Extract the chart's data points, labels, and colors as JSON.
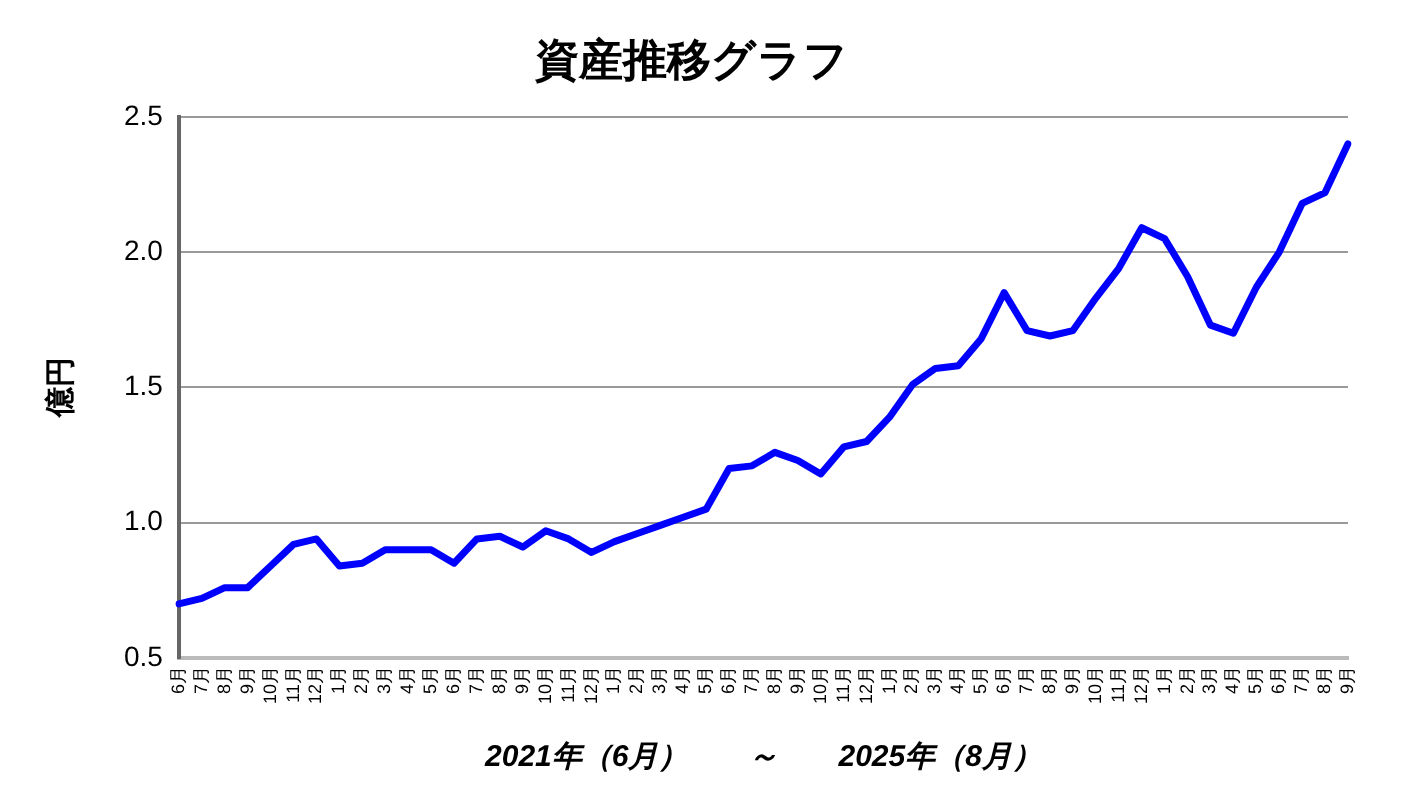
{
  "chart_data": {
    "type": "line",
    "title": "資産推移グラフ",
    "xlabel": "2021年（6月）　　～　　2025年（8月）",
    "ylabel": "億円",
    "categories": [
      "6月",
      "7月",
      "8月",
      "9月",
      "10月",
      "11月",
      "12月",
      "1月",
      "2月",
      "3月",
      "4月",
      "5月",
      "6月",
      "7月",
      "8月",
      "9月",
      "10月",
      "11月",
      "12月",
      "1月",
      "2月",
      "3月",
      "4月",
      "5月",
      "6月",
      "7月",
      "8月",
      "9月",
      "10月",
      "11月",
      "12月",
      "1月",
      "2月",
      "3月",
      "4月",
      "5月",
      "6月",
      "7月",
      "8月",
      "9月",
      "10月",
      "11月",
      "12月",
      "1月",
      "2月",
      "3月",
      "4月",
      "5月",
      "6月",
      "7月",
      "8月",
      "9月"
    ],
    "series": [
      {
        "color": "#0000ff",
        "values": [
          0.7,
          0.72,
          0.76,
          0.76,
          0.84,
          0.92,
          0.94,
          0.84,
          0.85,
          0.9,
          0.9,
          0.9,
          0.85,
          0.94,
          0.95,
          0.91,
          0.97,
          0.94,
          0.89,
          0.93,
          0.96,
          0.99,
          1.02,
          1.05,
          1.2,
          1.21,
          1.26,
          1.23,
          1.18,
          1.28,
          1.3,
          1.39,
          1.51,
          1.57,
          1.58,
          1.68,
          1.85,
          1.71,
          1.69,
          1.71,
          1.83,
          1.94,
          2.09,
          2.05,
          1.91,
          1.73,
          1.7,
          1.87,
          2.0,
          2.18,
          2.22,
          2.4
        ]
      }
    ],
    "ylim": [
      0.5,
      2.5
    ],
    "yticks": [
      {
        "value": 0.5,
        "label": "0.5"
      },
      {
        "value": 1,
        "label": "1.0"
      },
      {
        "value": 1.5,
        "label": "1.5"
      },
      {
        "value": 2,
        "label": "2.0"
      },
      {
        "value": 2.5,
        "label": "2.5"
      }
    ],
    "grid": "y",
    "legend": false,
    "marker": "none",
    "line_style": "solid"
  }
}
